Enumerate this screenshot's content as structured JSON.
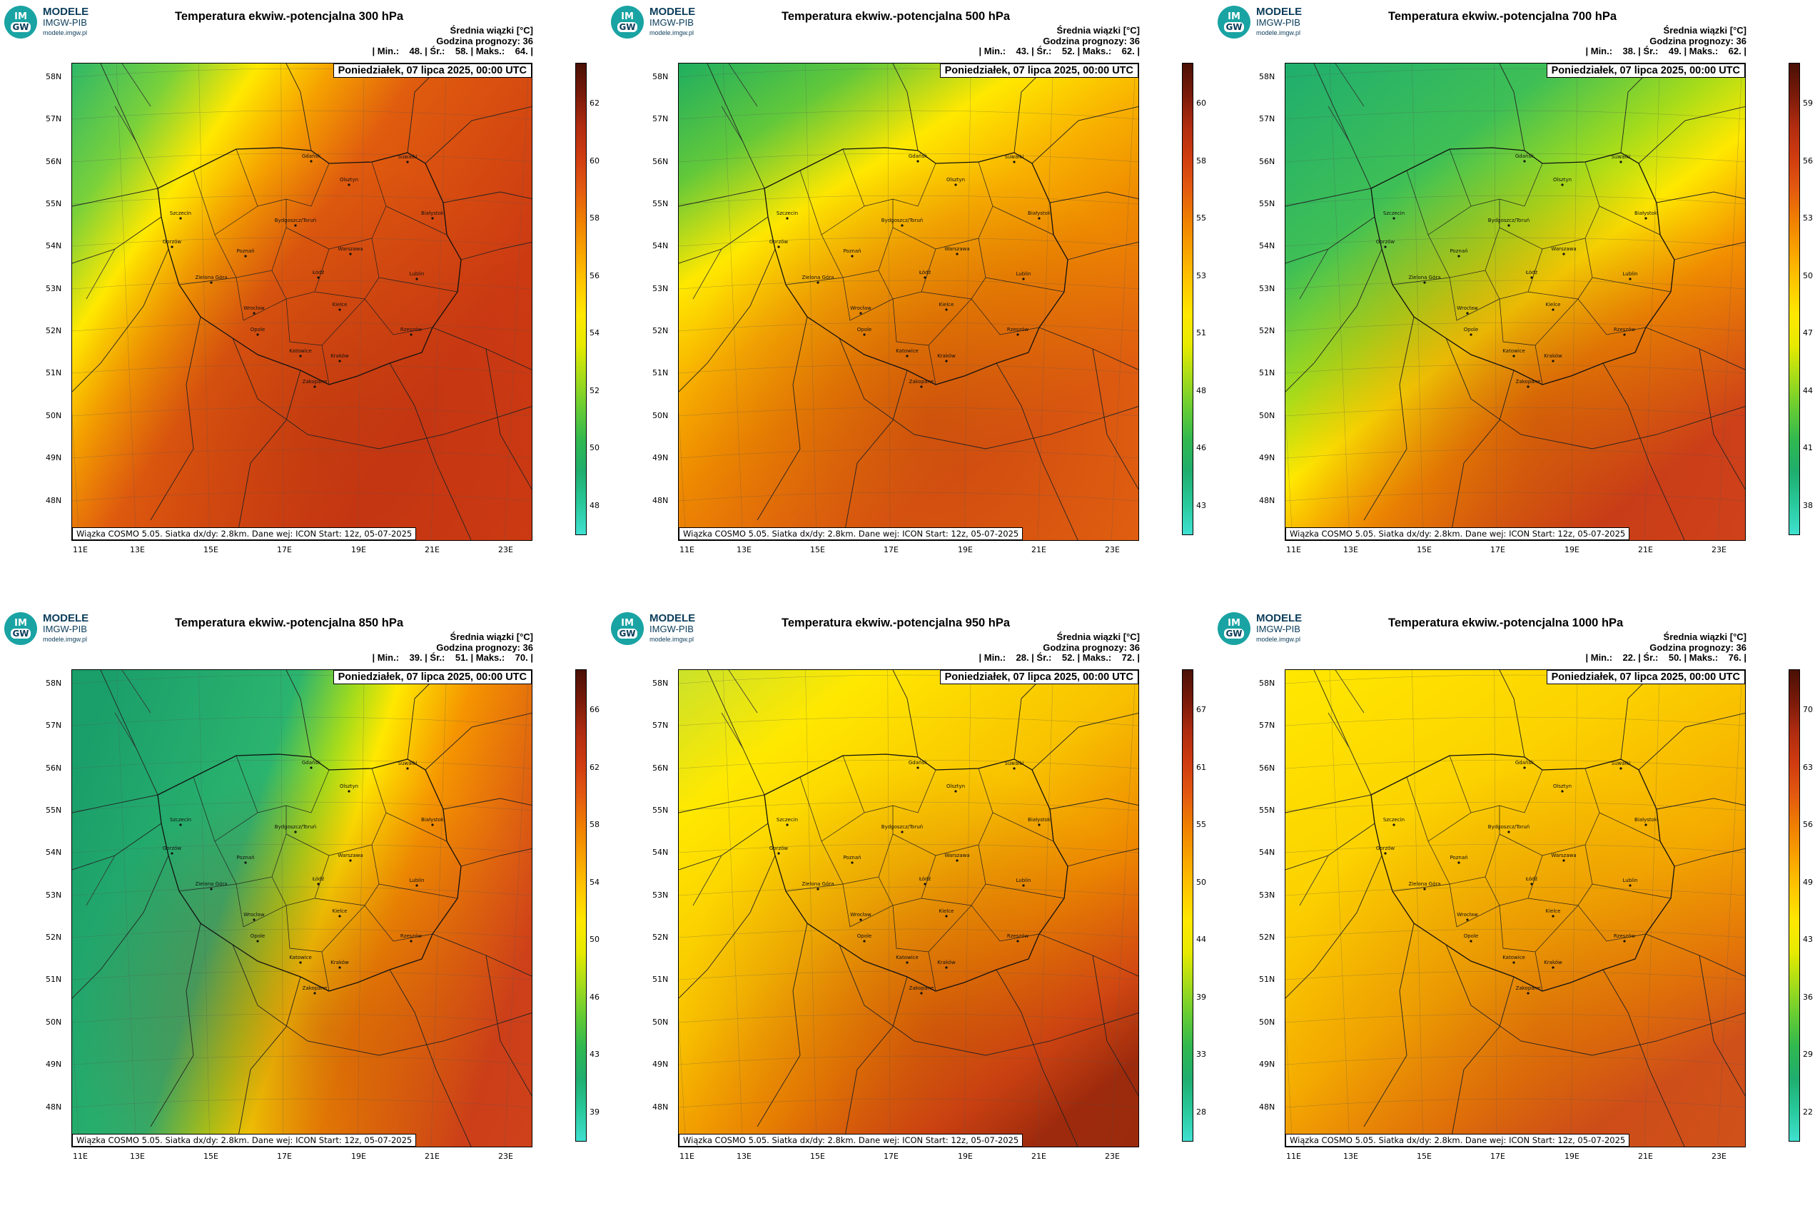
{
  "logo": {
    "mark_top": "IM",
    "mark_bottom": "GW",
    "line1": "MODELE",
    "line2": "IMGW-PIB",
    "line3": "modele.imgw.pl"
  },
  "common": {
    "mean_label": "Średnia wiązki [°C]",
    "forecast_label": "Godzina prognozy: 36",
    "date_label": "Poniedziałek, 07 lipca 2025, 00:00 UTC",
    "footer": "Wiązka COSMO 5.05. Siatka dx/dy: 2.8km. Dane wej: ICON Start: 12z, 05-07-2025",
    "lat_labels": [
      "58N",
      "57N",
      "56N",
      "55N",
      "54N",
      "53N",
      "52N",
      "51N",
      "50N",
      "49N",
      "48N"
    ],
    "lon_labels": [
      "11E",
      "13E",
      "15E",
      "17E",
      "19E",
      "21E",
      "23E"
    ],
    "cities": [
      "Gdańsk",
      "Olsztyn",
      "Suwałki",
      "Szczecin",
      "Bydgoszcz/Toruń",
      "Białystok",
      "Gorzów",
      "Poznań",
      "Warszawa",
      "Zielona Góra",
      "Łódź",
      "Lublin",
      "Wrocław",
      "Kielce",
      "Opole",
      "Rzeszów",
      "Katowice",
      "Kraków",
      "Zakopane"
    ]
  },
  "panels": [
    {
      "title": "Temperatura ekwiw.-potencjalna 300 hPa",
      "stats": "| Min.:    48. | Śr.:    58. | Maks.:    64. |",
      "cbar_labels": [
        "62",
        "60",
        "58",
        "56",
        "54",
        "52",
        "50",
        "48"
      ],
      "pattern": "p300"
    },
    {
      "title": "Temperatura ekwiw.-potencjalna 500 hPa",
      "stats": "| Min.:    43. | Śr.:    52. | Maks.:    62. |",
      "cbar_labels": [
        "60",
        "58",
        "55",
        "53",
        "51",
        "48",
        "46",
        "43"
      ],
      "pattern": "p500"
    },
    {
      "title": "Temperatura ekwiw.-potencjalna 700 hPa",
      "stats": "| Min.:    38. | Śr.:    49. | Maks.:    62. |",
      "cbar_labels": [
        "59",
        "56",
        "53",
        "50",
        "47",
        "44",
        "41",
        "38"
      ],
      "pattern": "p700"
    },
    {
      "title": "Temperatura ekwiw.-potencjalna 850 hPa",
      "stats": "| Min.:    39. | Śr.:    51. | Maks.:    70. |",
      "cbar_labels": [
        "66",
        "62",
        "58",
        "54",
        "50",
        "46",
        "43",
        "39"
      ],
      "pattern": "p850"
    },
    {
      "title": "Temperatura ekwiw.-potencjalna 950 hPa",
      "stats": "| Min.:    28. | Śr.:    52. | Maks.:    72. |",
      "cbar_labels": [
        "67",
        "61",
        "55",
        "50",
        "44",
        "39",
        "33",
        "28"
      ],
      "pattern": "p950"
    },
    {
      "title": "Temperatura ekwiw.-potencjalna 1000 hPa",
      "stats": "| Min.:    22. | Śr.:    50. | Maks.:    76. |",
      "cbar_labels": [
        "70",
        "63",
        "56",
        "49",
        "43",
        "36",
        "29",
        "22"
      ],
      "pattern": "p1000"
    }
  ]
}
